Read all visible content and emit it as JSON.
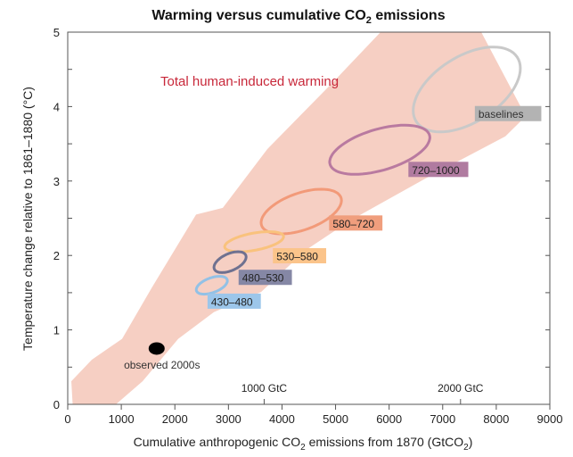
{
  "chart_data": {
    "type": "scatter",
    "title": "Warming versus cumulative CO",
    "title_sub": "2",
    "title_tail": " emissions",
    "xlabel": "Cumulative anthropogenic CO",
    "xlabel_sub": "2",
    "xlabel_tail": " emissions from 1870  (GtCO",
    "xlabel_sub2": "2",
    "xlabel_end": ")",
    "ylabel": "Temperature change relative to 1861–1880 (°C)",
    "xlim": [
      0,
      9000
    ],
    "ylim": [
      0,
      5
    ],
    "xticks": [
      0,
      1000,
      2000,
      3000,
      4000,
      5000,
      6000,
      7000,
      8000,
      9000
    ],
    "yticks": [
      0,
      1,
      2,
      3,
      4,
      5
    ],
    "secondary_ticks": [
      {
        "x": 3667,
        "label": "1000 GtC"
      },
      {
        "x": 7333,
        "label": "2000 GtC"
      }
    ],
    "plume_label": "Total human-induced warming",
    "plume_color": "#f6cfc3",
    "plume_polygon": [
      [
        67,
        0.31
      ],
      [
        450,
        0.6
      ],
      [
        1015,
        0.88
      ],
      [
        1564,
        1.56
      ],
      [
        2396,
        2.55
      ],
      [
        2895,
        2.64
      ],
      [
        3727,
        3.43
      ],
      [
        4942,
        4.32
      ],
      [
        5840,
        5.0
      ],
      [
        7720,
        5.0
      ],
      [
        8550,
        3.87
      ],
      [
        8170,
        3.6
      ],
      [
        6670,
        3.03
      ],
      [
        5275,
        2.47
      ],
      [
        4440,
        2.07
      ],
      [
        3610,
        1.51
      ],
      [
        2730,
        1.24
      ],
      [
        2063,
        0.88
      ],
      [
        1398,
        0.31
      ],
      [
        900,
        0
      ],
      [
        116,
        -0.3
      ]
    ],
    "observed": {
      "label": "observed 2000s",
      "x": 1660,
      "y": 0.75,
      "label_x": 1760,
      "label_y": 0.54
    },
    "series": [
      {
        "name": "baselines",
        "xrange": [
          6450,
          8450
        ],
        "yrange": [
          3.66,
          4.8
        ],
        "stroke": "#c9c9c9",
        "box": "#b3b3b3",
        "text_color": "#333",
        "label_x": 7600,
        "label_y": 3.9
      },
      {
        "name": "720–1000",
        "xrange": [
          4890,
          6760
        ],
        "yrange": [
          3.09,
          3.75
        ],
        "stroke": "#b97aa0",
        "box": "#b07ba0",
        "text_color": "#222",
        "label_x": 6360,
        "label_y": 3.15
      },
      {
        "name": "580–720",
        "xrange": [
          3610,
          5110
        ],
        "yrange": [
          2.29,
          2.89
        ],
        "stroke": "#f29a79",
        "box": "#f09e7d",
        "text_color": "#222",
        "label_x": 4880,
        "label_y": 2.43
      },
      {
        "name": "530–580",
        "xrange": [
          2930,
          4030
        ],
        "yrange": [
          2.05,
          2.32
        ],
        "stroke": "#f9c27d",
        "box": "#fbc48a",
        "text_color": "#222",
        "label_x": 3830,
        "label_y": 1.99
      },
      {
        "name": "480–530",
        "xrange": [
          2730,
          3330
        ],
        "yrange": [
          1.77,
          2.05
        ],
        "stroke": "#6f7190",
        "box": "#8587a5",
        "text_color": "#222",
        "label_x": 3190,
        "label_y": 1.7
      },
      {
        "name": "430–480",
        "xrange": [
          2400,
          2980
        ],
        "yrange": [
          1.48,
          1.72
        ],
        "stroke": "#92c1e6",
        "box": "#9cc6ea",
        "text_color": "#222",
        "label_x": 2610,
        "label_y": 1.38
      }
    ]
  }
}
